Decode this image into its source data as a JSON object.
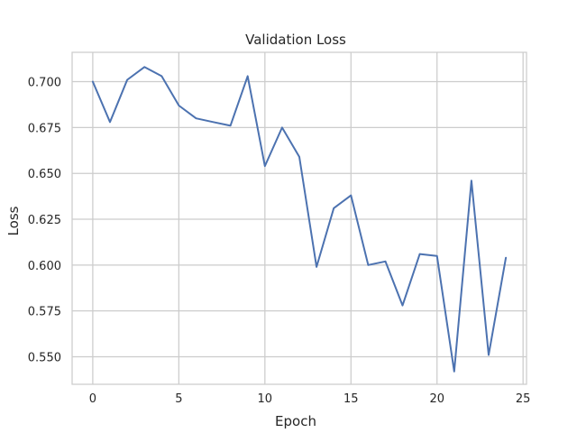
{
  "chart_data": {
    "type": "line",
    "title": "Validation Loss",
    "xlabel": "Epoch",
    "ylabel": "Loss",
    "xlim": [
      -1.2,
      25.2
    ],
    "ylim": [
      0.535,
      0.716
    ],
    "xticks": [
      0,
      5,
      10,
      15,
      20,
      25
    ],
    "yticks": [
      0.55,
      0.575,
      0.6,
      0.625,
      0.65,
      0.675,
      0.7
    ],
    "xtick_labels": [
      "0",
      "5",
      "10",
      "15",
      "20",
      "25"
    ],
    "ytick_labels": [
      "0.550",
      "0.575",
      "0.600",
      "0.625",
      "0.650",
      "0.675",
      "0.700"
    ],
    "grid": true,
    "legend": "none",
    "series": [
      {
        "color": "#4c72b0",
        "x": [
          0,
          1,
          2,
          3,
          4,
          5,
          6,
          7,
          8,
          9,
          10,
          11,
          12,
          13,
          14,
          15,
          16,
          17,
          18,
          19,
          20,
          21,
          22,
          23,
          24
        ],
        "values": [
          0.7,
          0.678,
          0.701,
          0.708,
          0.703,
          0.687,
          0.68,
          0.678,
          0.676,
          0.703,
          0.654,
          0.675,
          0.659,
          0.599,
          0.631,
          0.638,
          0.6,
          0.602,
          0.578,
          0.606,
          0.605,
          0.542,
          0.646,
          0.551,
          0.604
        ]
      }
    ]
  }
}
